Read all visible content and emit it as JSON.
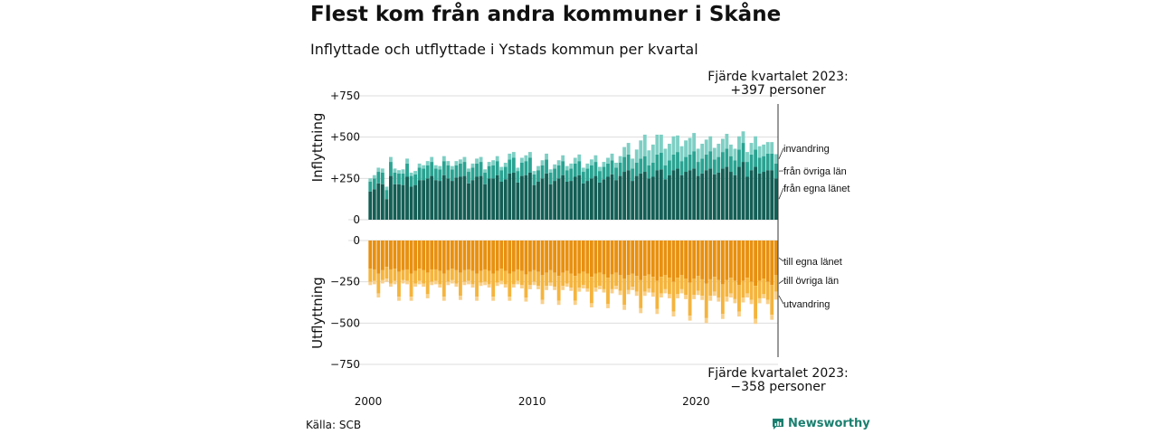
{
  "header": {
    "title": "Flest kom från andra kommuner i Skåne",
    "subtitle": "Inflyttade och utflyttade i Ystads kommun per kvartal"
  },
  "footer": {
    "source": "Källa: SCB",
    "brand": "Newsworthy"
  },
  "colors": {
    "in_own": "#135e55",
    "in_other": "#2aa392",
    "in_foreign": "#7ecfc4",
    "out_own": "#e8900f",
    "out_other": "#f5b43c",
    "out_foreign": "#f9d08a",
    "grid": "#dddddd"
  },
  "chart_data": {
    "type": "bar",
    "stacked": true,
    "panels": [
      {
        "name": "inflyttning",
        "ylabel": "Inflyttning",
        "ylim": [
          0,
          750
        ],
        "yticks": [
          0,
          250,
          500,
          750
        ],
        "ytick_labels": [
          "0",
          "+250",
          "+500",
          "+750"
        ],
        "series": [
          {
            "name": "från egna länet",
            "values": [
              170,
              185,
              220,
              215,
              125,
              265,
              215,
              215,
              210,
              260,
              200,
              210,
              240,
              240,
              250,
              265,
              240,
              235,
              270,
              250,
              235,
              255,
              260,
              265,
              220,
              240,
              260,
              265,
              215,
              250,
              250,
              270,
              230,
              245,
              280,
              285,
              225,
              265,
              270,
              285,
              210,
              230,
              250,
              280,
              215,
              235,
              250,
              270,
              230,
              235,
              260,
              270,
              220,
              235,
              250,
              265,
              225,
              245,
              260,
              275,
              240,
              265,
              290,
              300,
              235,
              265,
              280,
              290,
              250,
              260,
              300,
              305,
              245,
              270,
              300,
              310,
              270,
              290,
              300,
              310,
              265,
              280,
              300,
              310,
              275,
              285,
              310,
              320,
              290,
              270,
              320,
              350,
              260,
              300,
              320,
              280,
              290,
              300,
              300,
              250
            ]
          },
          {
            "name": "från övriga län",
            "values": [
              60,
              65,
              70,
              70,
              55,
              85,
              70,
              65,
              70,
              80,
              65,
              65,
              75,
              70,
              80,
              85,
              70,
              70,
              85,
              80,
              70,
              75,
              80,
              85,
              70,
              75,
              80,
              85,
              70,
              75,
              80,
              85,
              70,
              75,
              85,
              90,
              70,
              80,
              85,
              90,
              65,
              70,
              80,
              85,
              70,
              75,
              80,
              85,
              70,
              75,
              80,
              85,
              70,
              75,
              80,
              85,
              70,
              75,
              80,
              85,
              75,
              80,
              90,
              95,
              75,
              80,
              90,
              95,
              80,
              85,
              95,
              100,
              85,
              90,
              95,
              100,
              85,
              90,
              95,
              105,
              85,
              90,
              95,
              105,
              90,
              95,
              100,
              110,
              95,
              90,
              105,
              115,
              90,
              95,
              105,
              95,
              95,
              100,
              100,
              90
            ]
          },
          {
            "name": "invandring",
            "values": [
              20,
              20,
              25,
              25,
              20,
              30,
              25,
              20,
              25,
              30,
              20,
              20,
              25,
              20,
              25,
              30,
              20,
              20,
              30,
              25,
              20,
              25,
              25,
              30,
              20,
              25,
              30,
              30,
              20,
              25,
              30,
              30,
              20,
              25,
              35,
              35,
              20,
              30,
              35,
              35,
              20,
              25,
              30,
              35,
              20,
              25,
              30,
              35,
              25,
              30,
              35,
              40,
              25,
              30,
              35,
              40,
              25,
              30,
              35,
              40,
              30,
              40,
              60,
              70,
              60,
              80,
              110,
              130,
              90,
              110,
              120,
              110,
              100,
              100,
              110,
              100,
              90,
              100,
              100,
              110,
              80,
              90,
              90,
              90,
              70,
              80,
              80,
              90,
              70,
              70,
              80,
              70,
              60,
              70,
              80,
              70,
              70,
              70,
              70,
              57
            ]
          }
        ]
      },
      {
        "name": "utflyttning",
        "ylabel": "Utflyttning",
        "ylim": [
          -750,
          0
        ],
        "yticks": [
          0,
          -250,
          -500,
          -750
        ],
        "ytick_labels": [
          "0",
          "−250",
          "−500",
          "−750"
        ],
        "series": [
          {
            "name": "till egna länet",
            "values": [
              -170,
              -175,
              -200,
              -180,
              -160,
              -175,
              -170,
              -190,
              -180,
              -175,
              -200,
              -185,
              -170,
              -180,
              -195,
              -175,
              -175,
              -185,
              -200,
              -180,
              -170,
              -180,
              -195,
              -180,
              -175,
              -185,
              -200,
              -185,
              -175,
              -185,
              -200,
              -185,
              -170,
              -185,
              -200,
              -190,
              -175,
              -185,
              -205,
              -190,
              -180,
              -190,
              -210,
              -195,
              -180,
              -195,
              -215,
              -195,
              -185,
              -200,
              -215,
              -200,
              -190,
              -200,
              -220,
              -200,
              -195,
              -205,
              -225,
              -205,
              -195,
              -210,
              -230,
              -210,
              -200,
              -215,
              -240,
              -215,
              -205,
              -220,
              -245,
              -220,
              -210,
              -225,
              -250,
              -225,
              -210,
              -230,
              -255,
              -230,
              -215,
              -235,
              -260,
              -235,
              -220,
              -240,
              -265,
              -240,
              -225,
              -245,
              -270,
              -245,
              -225,
              -250,
              -275,
              -245,
              -230,
              -250,
              -270,
              -210
            ]
          },
          {
            "name": "till övriga län",
            "values": [
              -80,
              -70,
              -120,
              -60,
              -70,
              -85,
              -75,
              -150,
              -60,
              -70,
              -140,
              -75,
              -75,
              -80,
              -130,
              -75,
              -70,
              -80,
              -140,
              -70,
              -70,
              -80,
              -140,
              -70,
              -70,
              -80,
              -140,
              -70,
              -75,
              -80,
              -140,
              -70,
              -75,
              -80,
              -140,
              -75,
              -70,
              -85,
              -140,
              -80,
              -70,
              -85,
              -150,
              -80,
              -75,
              -85,
              -150,
              -80,
              -75,
              -85,
              -150,
              -85,
              -80,
              -90,
              -160,
              -85,
              -80,
              -90,
              -160,
              -90,
              -80,
              -95,
              -160,
              -90,
              -80,
              -95,
              -170,
              -95,
              -85,
              -95,
              -170,
              -100,
              -85,
              -100,
              -180,
              -100,
              -85,
              -100,
              -200,
              -100,
              -90,
              -100,
              -210,
              -100,
              -90,
              -105,
              -180,
              -100,
              -95,
              -110,
              -160,
              -100,
              -95,
              -110,
              -200,
              -105,
              -95,
              -110,
              -180,
              -100
            ]
          },
          {
            "name": "utvandring",
            "values": [
              -20,
              -20,
              -25,
              -20,
              -20,
              -20,
              -20,
              -25,
              -20,
              -20,
              -25,
              -20,
              -20,
              -20,
              -25,
              -20,
              -20,
              -20,
              -25,
              -20,
              -20,
              -20,
              -25,
              -20,
              -20,
              -20,
              -25,
              -20,
              -20,
              -20,
              -25,
              -20,
              -20,
              -20,
              -25,
              -20,
              -20,
              -20,
              -25,
              -25,
              -20,
              -20,
              -25,
              -25,
              -20,
              -20,
              -25,
              -25,
              -20,
              -20,
              -25,
              -25,
              -20,
              -20,
              -25,
              -25,
              -20,
              -20,
              -25,
              -25,
              -20,
              -25,
              -30,
              -25,
              -20,
              -25,
              -30,
              -25,
              -25,
              -25,
              -30,
              -25,
              -25,
              -25,
              -30,
              -25,
              -25,
              -25,
              -30,
              -25,
              -25,
              -25,
              -30,
              -30,
              -25,
              -25,
              -30,
              -30,
              -25,
              -25,
              -30,
              -30,
              -25,
              -25,
              -30,
              -30,
              -25,
              -25,
              -30,
              -48
            ]
          }
        ]
      }
    ],
    "x_start": 2000,
    "quarters_per_year": 4,
    "xticks": [
      2000,
      2010,
      2020
    ],
    "xtick_labels": [
      "2000",
      "2010",
      "2020"
    ],
    "annotations": {
      "top": [
        "Fjärde kvartalet 2023:",
        "+397 personer"
      ],
      "bottom": [
        "Fjärde kvartalet 2023:",
        "−358 personer"
      ]
    },
    "grid": true
  }
}
